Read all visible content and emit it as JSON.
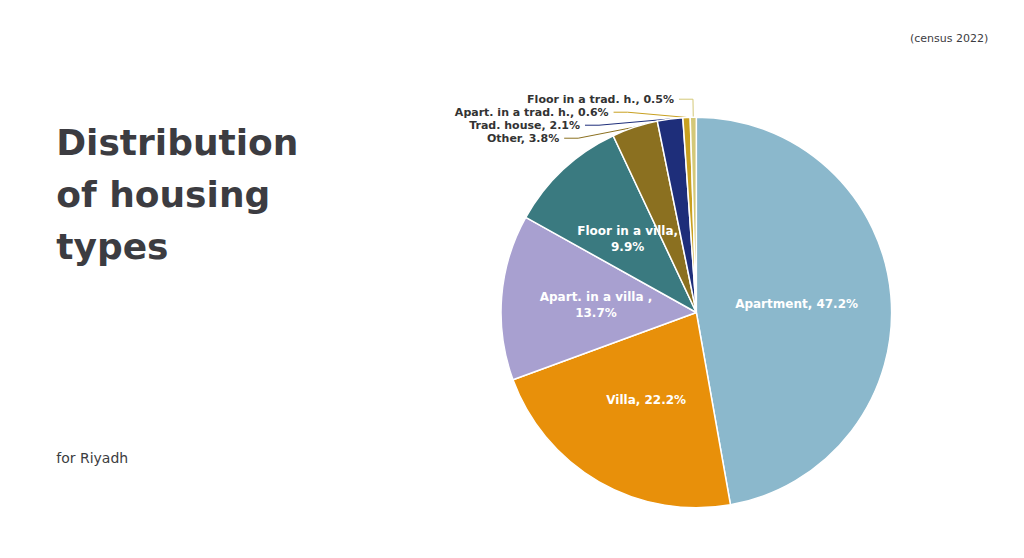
{
  "chart_data": {
    "type": "pie",
    "title": "Distribution\nof housing\ntypes",
    "subtitle": "for Riyadh",
    "annotations": [
      "(census 2022)"
    ],
    "categories": [
      "Apartment, 47.2%",
      "Villa, 22.2%",
      "Apart. in a villa ,\n13.7%",
      "Floor in a villa,\n9.9%",
      "Other, 3.8%",
      "Trad. house, 2.1%",
      "Apart. in a trad. h., 0.6%",
      "Floor in a trad. h., 0.5%"
    ],
    "values": [
      47.2,
      22.2,
      13.7,
      9.9,
      3.8,
      2.1,
      0.6,
      0.5
    ],
    "colors": [
      "#8BB8CC",
      "#E8900A",
      "#A8A0D0",
      "#3A7A80",
      "#8B7020",
      "#1E2E7A",
      "#C8A020",
      "#D4C878"
    ],
    "legend": false
  }
}
